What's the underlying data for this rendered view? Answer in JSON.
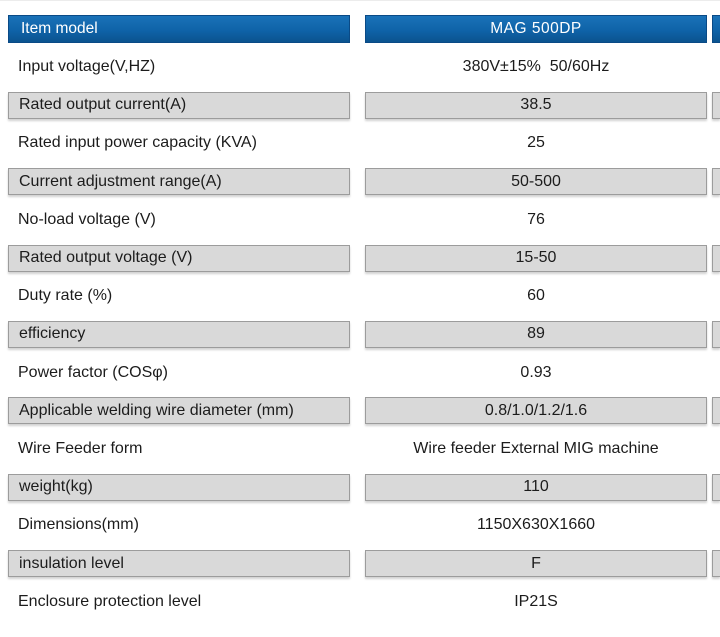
{
  "header": {
    "item_label": "Item model",
    "model_value": "MAG  500DP"
  },
  "rows": [
    {
      "label": "Input voltage(V,HZ)",
      "value": "380V±15%  50/60Hz"
    },
    {
      "label": "Rated output current(A)",
      "value": "38.5"
    },
    {
      "label": "Rated input power capacity (KVA)",
      "value": "25"
    },
    {
      "label": "Current adjustment range(A)",
      "value": "50-500"
    },
    {
      "label": "No-load voltage (V)",
      "value": "76"
    },
    {
      "label": "Rated output voltage (V)",
      "value": "15-50"
    },
    {
      "label": "Duty rate (%)",
      "value": "60"
    },
    {
      "label": "efficiency",
      "value": "89"
    },
    {
      "label": "Power factor (COSφ)",
      "value": "0.93"
    },
    {
      "label": "Applicable welding wire diameter (mm)",
      "value": "0.8/1.0/1.2/1.6"
    },
    {
      "label": "Wire Feeder form",
      "value": "Wire feeder External MIG machine"
    },
    {
      "label": "weight(kg)",
      "value": "110"
    },
    {
      "label": "Dimensions(mm)",
      "value": "1150X630X1660"
    },
    {
      "label": "insulation level",
      "value": "F"
    },
    {
      "label": "Enclosure protection level",
      "value": "IP21S"
    }
  ],
  "colors": {
    "header_blue": "#0f63a8",
    "row_gray": "#d9d9d9"
  }
}
